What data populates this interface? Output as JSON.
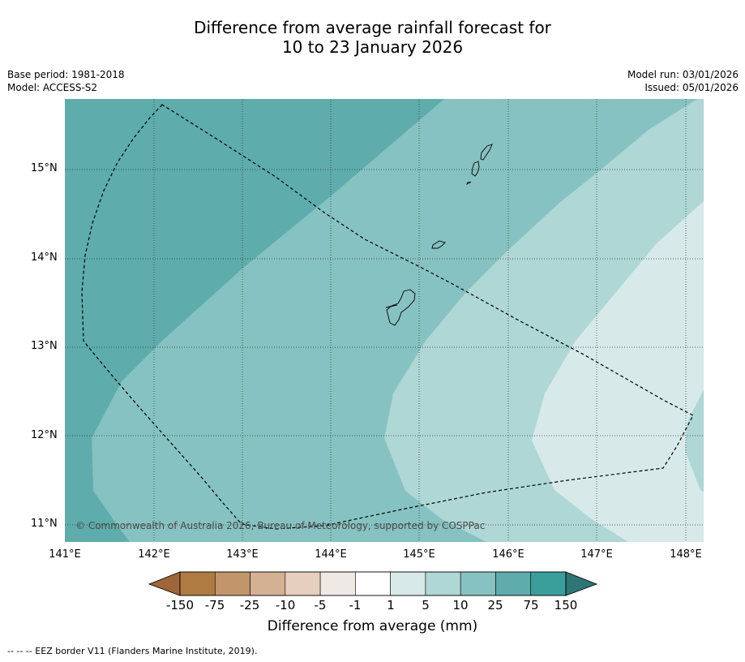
{
  "title_line1": "Difference from average rainfall forecast for",
  "title_line2": "10 to 23 January 2026",
  "base_period": "Base period: 1981-2018",
  "model": "Model: ACCESS-S2",
  "model_run": "Model run: 03/01/2026",
  "issued": "Issued: 05/01/2026",
  "lat_labels": [
    "15°N",
    "14°N",
    "13°N",
    "12°N",
    "11°N"
  ],
  "lon_labels": [
    "141°E",
    "142°E",
    "143°E",
    "144°E",
    "145°E",
    "146°E",
    "147°E",
    "148°E"
  ],
  "copyright": "© Commonwealth of Australia 2026, Bureau of Meteorology, supported by COSPPac",
  "colorbar": {
    "title": "Difference from average (mm)",
    "ticks": [
      "-150",
      "-75",
      "-25",
      "-10",
      "-5",
      "-1",
      "1",
      "5",
      "10",
      "25",
      "75",
      "150"
    ],
    "colors": {
      "below_min": "#9e6538",
      "b1": "#b07a43",
      "b2": "#c2956b",
      "b3": "#d4b192",
      "b4": "#e6cfbd",
      "b5": "#efe9e5",
      "b6": "#ffffff",
      "b7": "#d7eae9",
      "b8": "#aed7d6",
      "b9": "#86c2c1",
      "b10": "#5eacac",
      "b11": "#3a9e9b",
      "above_max": "#2d7675"
    }
  },
  "legend_text": "--  --  -- EEZ border V11 (Flanders Marine Institute, 2019)."
}
